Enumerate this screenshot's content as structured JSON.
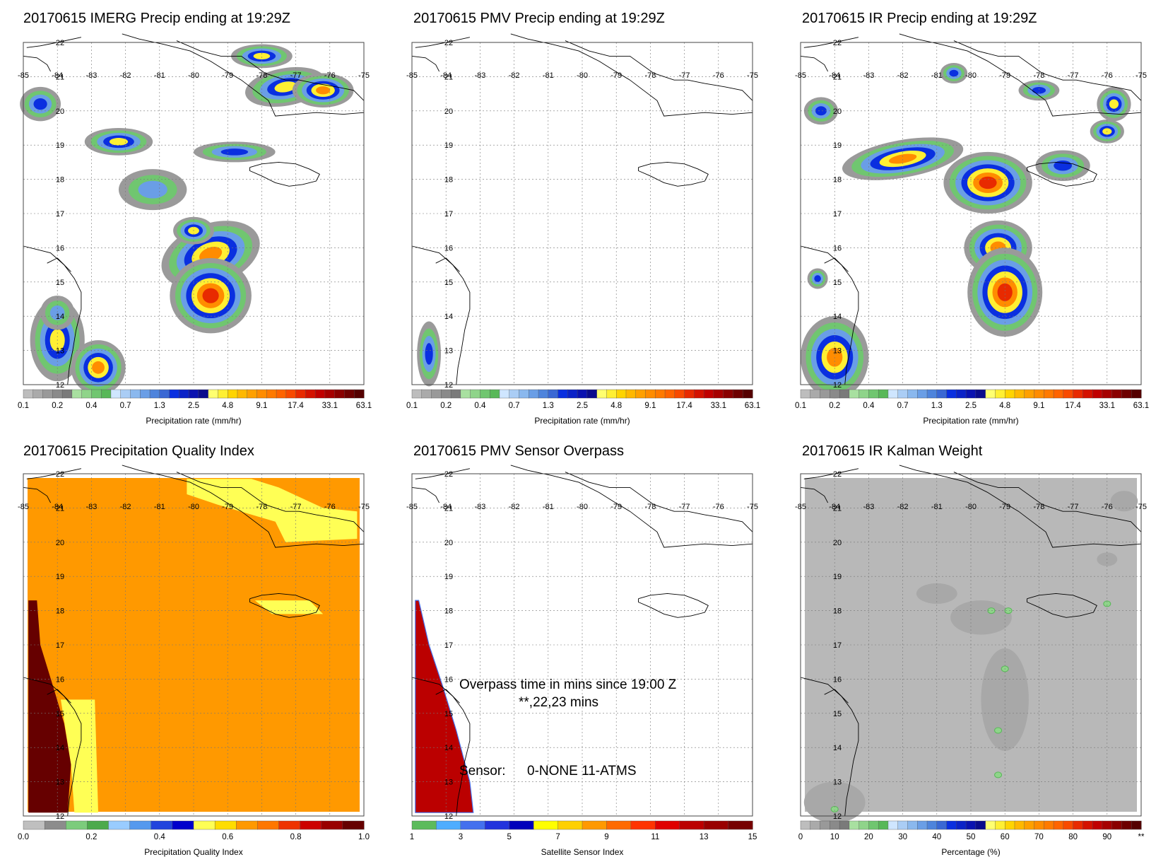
{
  "panels": [
    {
      "id": "imerg",
      "title": "20170615 IMERG Precip ending at 19:29Z",
      "lon_labels": [
        "-85",
        "-84",
        "-83",
        "-82",
        "-81",
        "-80",
        "-79",
        "-78",
        "-77",
        "-76",
        "-75"
      ],
      "lat_labels": [
        "22",
        "21",
        "20",
        "19",
        "18",
        "17",
        "16",
        "15",
        "14",
        "13",
        "12"
      ],
      "field": "precip-heavy",
      "colorbar": {
        "type": "precip",
        "ticks": [
          "0.1",
          "0.2",
          "0.4",
          "0.7",
          "1.3",
          "2.5",
          "4.8",
          "9.1",
          "17.4",
          "33.1",
          "63.1"
        ],
        "label": "Precipitation rate (mm/hr)"
      }
    },
    {
      "id": "pmv",
      "title": "20170615 PMV Precip ending at 19:29Z",
      "lon_labels": [
        "-85",
        "-84",
        "-83",
        "-82",
        "-81",
        "-80",
        "-79",
        "-78",
        "-77",
        "-76",
        "-75"
      ],
      "lat_labels": [
        "22",
        "21",
        "20",
        "19",
        "18",
        "17",
        "16",
        "15",
        "14",
        "13",
        "12"
      ],
      "field": "precip-sparse",
      "colorbar": {
        "type": "precip",
        "ticks": [
          "0.1",
          "0.2",
          "0.4",
          "0.7",
          "1.3",
          "2.5",
          "4.8",
          "9.1",
          "17.4",
          "33.1",
          "63.1"
        ],
        "label": "Precipitation rate (mm/hr)"
      }
    },
    {
      "id": "ir",
      "title": "20170615 IR Precip ending at 19:29Z",
      "lon_labels": [
        "-85",
        "-84",
        "-83",
        "-82",
        "-81",
        "-80",
        "-79",
        "-78",
        "-77",
        "-76",
        "-75"
      ],
      "lat_labels": [
        "22",
        "21",
        "20",
        "19",
        "18",
        "17",
        "16",
        "15",
        "14",
        "13",
        "12"
      ],
      "field": "precip-ir",
      "colorbar": {
        "type": "precip",
        "ticks": [
          "0.1",
          "0.2",
          "0.4",
          "0.7",
          "1.3",
          "2.5",
          "4.8",
          "9.1",
          "17.4",
          "33.1",
          "63.1"
        ],
        "label": "Precipitation rate (mm/hr)"
      }
    },
    {
      "id": "pqi",
      "title": "20170615 Precipitation Quality Index",
      "lon_labels": [
        "-85",
        "-84",
        "-83",
        "-82",
        "-81",
        "-80",
        "-79",
        "-78",
        "-77",
        "-76",
        "-75"
      ],
      "lat_labels": [
        "22",
        "21",
        "20",
        "19",
        "18",
        "17",
        "16",
        "15",
        "14",
        "13",
        "12"
      ],
      "field": "quality",
      "colorbar": {
        "type": "quality",
        "ticks": [
          "0.0",
          "0.2",
          "0.4",
          "0.6",
          "0.8",
          "1.0"
        ],
        "label": "Precipitation Quality Index"
      }
    },
    {
      "id": "overpass",
      "title": "20170615 PMV Sensor Overpass",
      "lon_labels": [
        "-85",
        "-84",
        "-83",
        "-82",
        "-81",
        "-80",
        "-79",
        "-78",
        "-77",
        "-76",
        "-75"
      ],
      "lat_labels": [
        "22",
        "21",
        "20",
        "19",
        "18",
        "17",
        "16",
        "15",
        "14",
        "13",
        "12"
      ],
      "field": "overpass",
      "annotations": {
        "overpass_line1": "Overpass time in mins since 19:00 Z",
        "overpass_line2": "**,22,23 mins",
        "sensor_label": "Sensor:",
        "sensor_values": "0-NONE 11-ATMS"
      },
      "colorbar": {
        "type": "sensor",
        "ticks": [
          "1",
          "3",
          "5",
          "7",
          "9",
          "11",
          "13",
          "15"
        ],
        "label": "Satellite Sensor Index"
      }
    },
    {
      "id": "kalman",
      "title": "20170615 IR Kalman Weight",
      "lon_labels": [
        "-85",
        "-84",
        "-83",
        "-82",
        "-81",
        "-80",
        "-79",
        "-78",
        "-77",
        "-76",
        "-75"
      ],
      "lat_labels": [
        "22",
        "21",
        "20",
        "19",
        "18",
        "17",
        "16",
        "15",
        "14",
        "13",
        "12"
      ],
      "field": "kalman",
      "colorbar": {
        "type": "percent",
        "ticks": [
          "0",
          "10",
          "20",
          "30",
          "40",
          "50",
          "60",
          "70",
          "80",
          "90",
          "**"
        ],
        "label": "Percentage (%)"
      }
    }
  ],
  "palettes": {
    "precip": [
      "#bdbdbd",
      "#aaaaaa",
      "#999999",
      "#8a8a8a",
      "#7a7a7a",
      "#a8e0a0",
      "#8fd48a",
      "#70c670",
      "#58b858",
      "#cfe6ff",
      "#aacdf5",
      "#8ab8ee",
      "#6a9ee6",
      "#4e84dc",
      "#3a68d4",
      "#0a2fe0",
      "#0b22c8",
      "#0a12b0",
      "#0a0b8c",
      "#ffff70",
      "#ffef33",
      "#ffd400",
      "#ffb800",
      "#ffa000",
      "#ff8c00",
      "#ff7a00",
      "#ff6400",
      "#f84a00",
      "#e82a00",
      "#d41200",
      "#c00000",
      "#a60000",
      "#8a0000",
      "#6e0000",
      "#550000"
    ],
    "quality": [
      "#bfbfbf",
      "#8c8c8c",
      "#7ccc7c",
      "#4caa4c",
      "#99ccff",
      "#5599ee",
      "#2244dd",
      "#0000cc",
      "#ffff55",
      "#ffdd00",
      "#ff9900",
      "#ff7700",
      "#ee3300",
      "#cc0000",
      "#990000",
      "#660000"
    ],
    "sensor": [
      "#5cbb5c",
      "#4eadff",
      "#4470ee",
      "#2233dd",
      "#0000bb",
      "#ffff00",
      "#ffd000",
      "#ff9900",
      "#ff6a00",
      "#ff3300",
      "#e00000",
      "#bb0000",
      "#990000",
      "#770000"
    ],
    "percent": [
      "#bdbdbd",
      "#aaaaaa",
      "#999999",
      "#8a8a8a",
      "#7a7a7a",
      "#a8e0a0",
      "#8fd48a",
      "#70c670",
      "#58b858",
      "#cfe6ff",
      "#aacdf5",
      "#8ab8ee",
      "#6a9ee6",
      "#4e84dc",
      "#3a68d4",
      "#0a2fe0",
      "#0b22c8",
      "#0a12b0",
      "#0a0b8c",
      "#ffff70",
      "#ffef33",
      "#ffd400",
      "#ffb800",
      "#ffa000",
      "#ff8c00",
      "#ff7a00",
      "#ff6400",
      "#f84a00",
      "#e82a00",
      "#d41200",
      "#c00000",
      "#a60000",
      "#8a0000",
      "#6e0000",
      "#550000"
    ]
  }
}
